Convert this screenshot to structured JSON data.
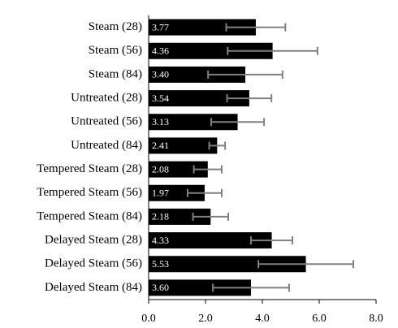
{
  "chart_data": {
    "type": "bar",
    "orientation": "horizontal",
    "categories": [
      "Steam (28)",
      "Steam (56)",
      "Steam (84)",
      "Untreated (28)",
      "Untreated (56)",
      "Untreated (84)",
      "Tempered Steam (28)",
      "Tempered Steam (56)",
      "Tempered Steam (84)",
      "Delayed Steam (28)",
      "Delayed Steam (56)",
      "Delayed Steam (84)"
    ],
    "values": [
      3.77,
      4.36,
      3.4,
      3.54,
      3.13,
      2.41,
      2.08,
      1.97,
      2.18,
      4.33,
      5.53,
      3.6
    ],
    "value_labels": [
      "3.77",
      "4.36",
      "3.40",
      "3.54",
      "3.13",
      "2.41",
      "2.08",
      "1.97",
      "2.18",
      "4.33",
      "5.53",
      "3.60"
    ],
    "errors": [
      1.04,
      1.58,
      1.31,
      0.78,
      0.93,
      0.28,
      0.49,
      0.6,
      0.62,
      0.73,
      1.67,
      1.34
    ],
    "color": "#000000",
    "error_color": "#808080",
    "xlim": [
      0,
      8
    ],
    "xticks": [
      {
        "value": 0,
        "label": "0.0"
      },
      {
        "value": 2,
        "label": "2.0"
      },
      {
        "value": 4,
        "label": "4.0"
      },
      {
        "value": 6,
        "label": "6.0"
      },
      {
        "value": 8,
        "label": "8.0"
      }
    ]
  }
}
